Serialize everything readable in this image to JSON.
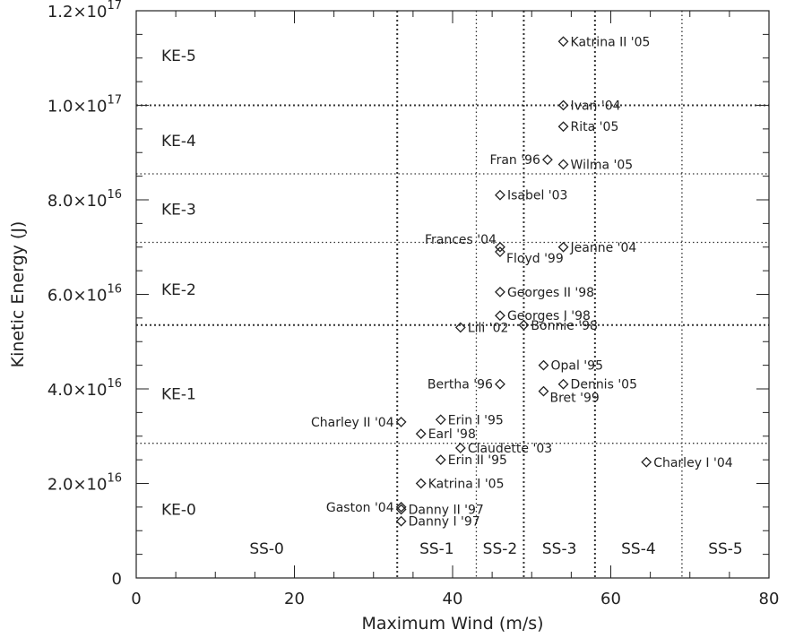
{
  "chart_data": {
    "type": "scatter",
    "title": "",
    "xlabel": "Maximum Wind (m/s)",
    "ylabel": "Kinetic Energy (J)",
    "xlim": [
      0,
      80
    ],
    "ylim": [
      0,
      1.2e+17
    ],
    "x_ticks": [
      {
        "value": 0,
        "label": "0"
      },
      {
        "value": 20,
        "label": "20"
      },
      {
        "value": 40,
        "label": "40"
      },
      {
        "value": 60,
        "label": "60"
      },
      {
        "value": 80,
        "label": "80"
      }
    ],
    "y_ticks": [
      {
        "value": 0,
        "label": "0",
        "mantissa": "0",
        "exponent": ""
      },
      {
        "value": 2e+16,
        "label": "2.0×10^16",
        "mantissa": "2.0×10",
        "exponent": "16"
      },
      {
        "value": 4e+16,
        "label": "4.0×10^16",
        "mantissa": "4.0×10",
        "exponent": "16"
      },
      {
        "value": 6e+16,
        "label": "6.0×10^16",
        "mantissa": "6.0×10",
        "exponent": "16"
      },
      {
        "value": 8e+16,
        "label": "8.0×10^16",
        "mantissa": "8.0×10",
        "exponent": "16"
      },
      {
        "value": 1e+17,
        "label": "1.0×10^17",
        "mantissa": "1.0×10",
        "exponent": "17"
      },
      {
        "value": 1.2e+17,
        "label": "1.2×10^17",
        "mantissa": "1.2×10",
        "exponent": "17"
      }
    ],
    "grid": false,
    "vertical_thresholds": [
      {
        "x": 33,
        "bold": true
      },
      {
        "x": 43,
        "bold": false
      },
      {
        "x": 49,
        "bold": true
      },
      {
        "x": 58,
        "bold": true
      },
      {
        "x": 69,
        "bold": false
      }
    ],
    "horizontal_thresholds": [
      {
        "y": 2.85e+16,
        "bold": false
      },
      {
        "y": 5.35e+16,
        "bold": true
      },
      {
        "y": 7.1e+16,
        "bold": false
      },
      {
        "y": 8.55e+16,
        "bold": false
      },
      {
        "y": 1e+17,
        "bold": true
      }
    ],
    "ss_labels": [
      {
        "text": "SS-0",
        "x": 16.5
      },
      {
        "text": "SS-1",
        "x": 38
      },
      {
        "text": "SS-2",
        "x": 46
      },
      {
        "text": "SS-3",
        "x": 53.5
      },
      {
        "text": "SS-4",
        "x": 63.5
      },
      {
        "text": "SS-5",
        "x": 74.5
      }
    ],
    "ke_labels": [
      {
        "text": "KE-0",
        "y": 1.45e+16
      },
      {
        "text": "KE-1",
        "y": 3.9e+16
      },
      {
        "text": "KE-2",
        "y": 6.1e+16
      },
      {
        "text": "KE-3",
        "y": 7.8e+16
      },
      {
        "text": "KE-4",
        "y": 9.25e+16
      },
      {
        "text": "KE-5",
        "y": 1.105e+17
      }
    ],
    "points": [
      {
        "name": "Katrina II '05",
        "x": 54,
        "y": 1.135e+17,
        "side": "right"
      },
      {
        "name": "Ivan '04",
        "x": 54,
        "y": 1e+17,
        "side": "right"
      },
      {
        "name": "Rita '05",
        "x": 54,
        "y": 9.55e+16,
        "side": "right"
      },
      {
        "name": "Fran '96",
        "x": 52,
        "y": 8.85e+16,
        "side": "left"
      },
      {
        "name": "Wilma '05",
        "x": 54,
        "y": 8.75e+16,
        "side": "right"
      },
      {
        "name": "Isabel '03",
        "x": 46,
        "y": 8.1e+16,
        "side": "right"
      },
      {
        "name": "Frances '04",
        "x": 46,
        "y": 7e+16,
        "side": "left-above"
      },
      {
        "name": "Jeanne '04",
        "x": 54,
        "y": 7e+16,
        "side": "right"
      },
      {
        "name": "Floyd '99",
        "x": 46,
        "y": 6.9e+16,
        "side": "right-below"
      },
      {
        "name": "Georges II '98",
        "x": 46,
        "y": 6.05e+16,
        "side": "right"
      },
      {
        "name": "Georges I '98",
        "x": 46,
        "y": 5.55e+16,
        "side": "right"
      },
      {
        "name": "Bonnie '98",
        "x": 49,
        "y": 5.35e+16,
        "side": "right"
      },
      {
        "name": "Lili '02",
        "x": 41,
        "y": 5.3e+16,
        "side": "right"
      },
      {
        "name": "Opal '95",
        "x": 51.5,
        "y": 4.5e+16,
        "side": "right"
      },
      {
        "name": "Dennis '05",
        "x": 54,
        "y": 4.1e+16,
        "side": "right"
      },
      {
        "name": "Bertha '96",
        "x": 46,
        "y": 4.1e+16,
        "side": "left"
      },
      {
        "name": "Bret '99",
        "x": 51.5,
        "y": 3.95e+16,
        "side": "right-below"
      },
      {
        "name": "Charley II '04",
        "x": 33.5,
        "y": 3.3e+16,
        "side": "left"
      },
      {
        "name": "Erin I '95",
        "x": 38.5,
        "y": 3.35e+16,
        "side": "right"
      },
      {
        "name": "Earl '98",
        "x": 36,
        "y": 3.05e+16,
        "side": "right"
      },
      {
        "name": "Claudette '03",
        "x": 41,
        "y": 2.75e+16,
        "side": "right"
      },
      {
        "name": "Erin II '95",
        "x": 38.5,
        "y": 2.5e+16,
        "side": "right"
      },
      {
        "name": "Charley I '04",
        "x": 64.5,
        "y": 2.45e+16,
        "side": "right"
      },
      {
        "name": "Katrina I '05",
        "x": 36,
        "y": 2e+16,
        "side": "right"
      },
      {
        "name": "Gaston '04",
        "x": 33.5,
        "y": 1.5e+16,
        "side": "left"
      },
      {
        "name": "Danny II '97",
        "x": 33.5,
        "y": 1.45e+16,
        "side": "right"
      },
      {
        "name": "Danny I '97",
        "x": 33.5,
        "y": 1.2e+16,
        "side": "right"
      }
    ]
  }
}
